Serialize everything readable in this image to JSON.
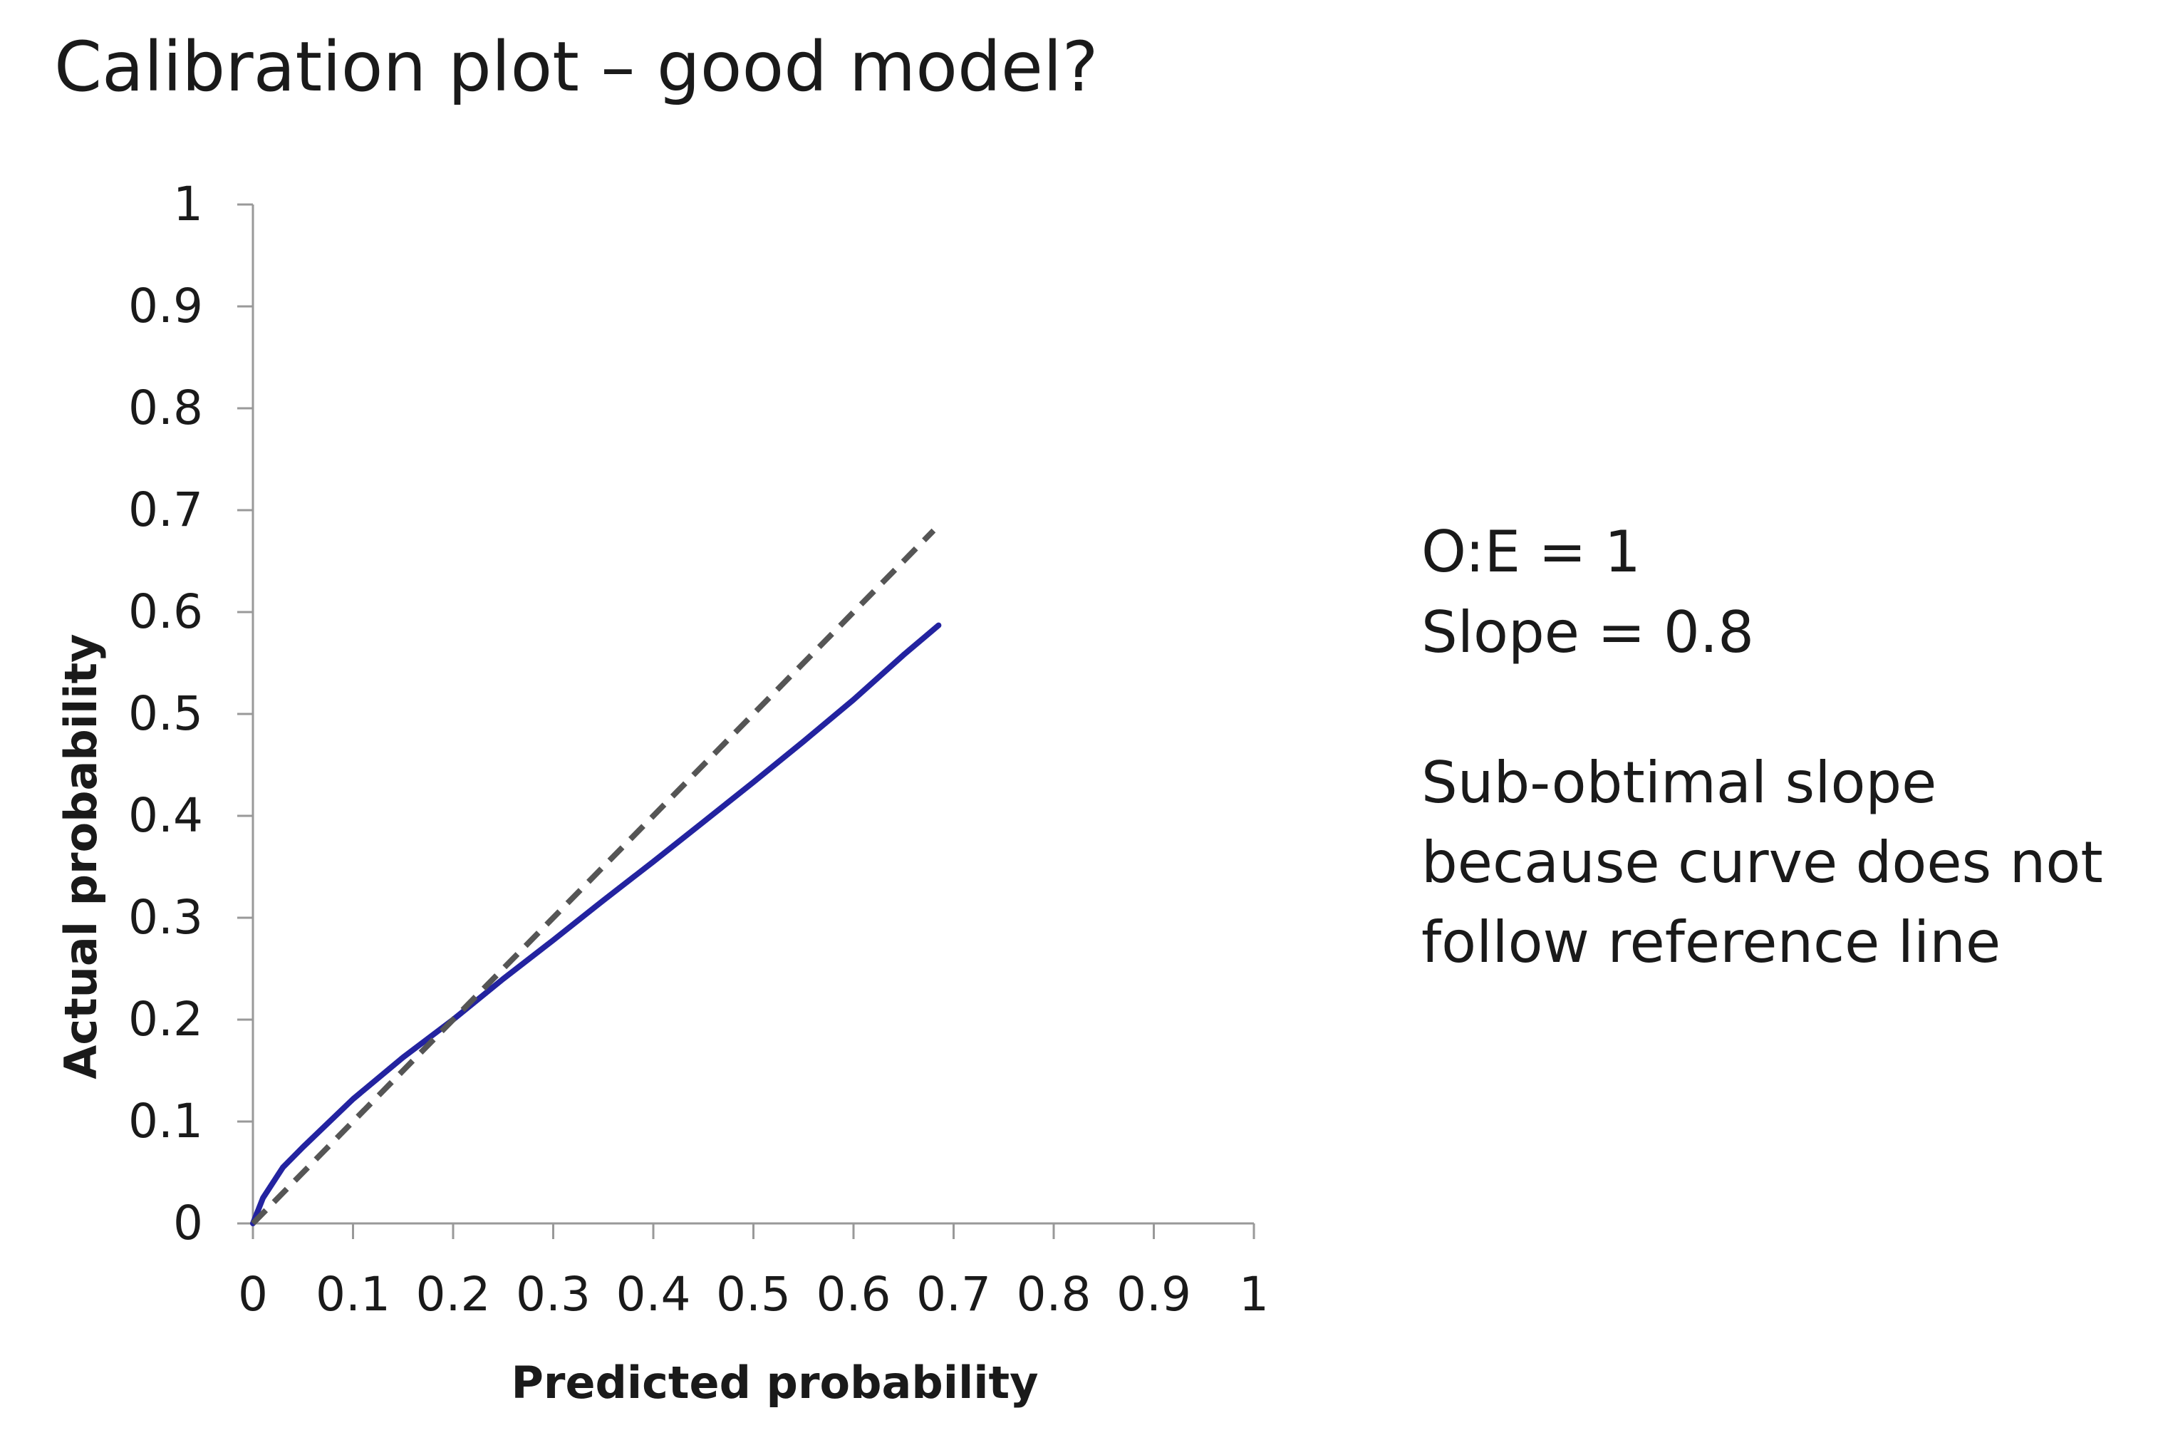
{
  "slide": {
    "title": "Calibration plot – good model?"
  },
  "annotation": {
    "stats": [
      "O:E = 1",
      "Slope = 0.8"
    ],
    "note": [
      "Sub-obtimal slope",
      "because curve does not",
      "follow reference line"
    ]
  },
  "colors": {
    "curve": "#2323a0",
    "reference": "#555555",
    "axis": "#999999",
    "text": "#1a1a1a"
  },
  "chart_data": {
    "type": "line",
    "title": "",
    "xlabel": "Predicted probability",
    "ylabel": "Actual probability",
    "xlim": [
      0,
      1
    ],
    "ylim": [
      0,
      1
    ],
    "xticks": [
      "0",
      "0.1",
      "0.2",
      "0.3",
      "0.4",
      "0.5",
      "0.6",
      "0.7",
      "0.8",
      "0.9",
      "1"
    ],
    "yticks": [
      "0",
      "0.1",
      "0.2",
      "0.3",
      "0.4",
      "0.5",
      "0.6",
      "0.7",
      "0.8",
      "0.9",
      "1"
    ],
    "grid": false,
    "series": [
      {
        "style": "solid",
        "color": "#2323a0",
        "x": [
          0,
          0.01,
          0.03,
          0.05,
          0.1,
          0.15,
          0.2,
          0.25,
          0.3,
          0.35,
          0.4,
          0.45,
          0.5,
          0.55,
          0.6,
          0.65,
          0.685
        ],
        "y": [
          0,
          0.025,
          0.055,
          0.075,
          0.122,
          0.163,
          0.2,
          0.24,
          0.278,
          0.317,
          0.355,
          0.394,
          0.433,
          0.473,
          0.514,
          0.558,
          0.587
        ]
      },
      {
        "style": "dashed",
        "color": "#555555",
        "x": [
          0,
          0.68
        ],
        "y": [
          0,
          0.68
        ]
      }
    ]
  }
}
